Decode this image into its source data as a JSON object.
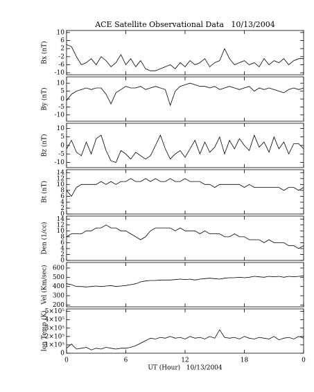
{
  "title": "ACE Satellite Observational Data   10/13/2004",
  "chart_data": [
    {
      "type": "line",
      "ylabel": "Bx (nT)",
      "color": "#000000",
      "xlim": [
        0,
        24
      ],
      "xticks": [
        0,
        6,
        12,
        18,
        {
          "value": 24,
          "label": "0"
        }
      ],
      "ylim": [
        -11,
        11
      ],
      "yticks": [
        10,
        6,
        2,
        -2,
        -6,
        -10
      ],
      "x": [
        0,
        0.5,
        1,
        1.5,
        2,
        2.5,
        3,
        3.5,
        4,
        4.5,
        5,
        5.5,
        6,
        6.5,
        7,
        7.5,
        8,
        8.5,
        9,
        9.5,
        10,
        10.5,
        11,
        11.5,
        12,
        12.5,
        13,
        13.5,
        14,
        14.5,
        15,
        15.5,
        16,
        16.5,
        17,
        17.5,
        18,
        18.5,
        19,
        19.5,
        20,
        20.5,
        21,
        21.5,
        22,
        22.5,
        23,
        23.5,
        24
      ],
      "values": [
        4,
        3,
        -2,
        -6,
        -5,
        -3,
        -6,
        -2,
        -4,
        -7,
        -5,
        -1,
        -6,
        -3,
        -7,
        -4,
        -8,
        -9,
        -9,
        -8,
        -7,
        -6,
        -8,
        -5,
        -7,
        -4,
        -6,
        -5,
        -3,
        -7,
        -5,
        -4,
        2,
        -3,
        -6,
        -5,
        -4,
        -6,
        -5,
        -7,
        -3,
        -6,
        -4,
        -5,
        -3,
        -6,
        -4,
        -3,
        -3
      ]
    },
    {
      "type": "line",
      "ylabel": "By (nT)",
      "color": "#000000",
      "xlim": [
        0,
        24
      ],
      "xticks": [
        0,
        6,
        12,
        18,
        {
          "value": 24,
          "label": "0"
        }
      ],
      "ylim": [
        -14,
        14
      ],
      "yticks": [
        10,
        5,
        0,
        -5,
        -10
      ],
      "x": [
        0,
        0.5,
        1,
        1.5,
        2,
        2.5,
        3,
        3.5,
        4,
        4.5,
        5,
        5.5,
        6,
        6.5,
        7,
        7.5,
        8,
        8.5,
        9,
        9.5,
        10,
        10.5,
        11,
        11.5,
        12,
        12.5,
        13,
        13.5,
        14,
        14.5,
        15,
        15.5,
        16,
        16.5,
        17,
        17.5,
        18,
        18.5,
        19,
        19.5,
        20,
        20.5,
        21,
        21.5,
        22,
        22.5,
        23,
        23.5,
        24
      ],
      "values": [
        -1,
        3,
        5,
        6,
        7,
        6,
        7,
        7,
        3,
        -3,
        4,
        6,
        8,
        7,
        7,
        8,
        6,
        7,
        8,
        7,
        6,
        -4,
        5,
        8,
        9,
        10,
        9,
        8,
        8,
        7,
        8,
        6,
        7,
        8,
        7,
        6,
        7,
        8,
        5,
        7,
        6,
        7,
        6,
        5,
        4,
        6,
        7,
        6,
        7
      ]
    },
    {
      "type": "line",
      "ylabel": "Bz (nT)",
      "color": "#000000",
      "xlim": [
        0,
        24
      ],
      "xticks": [
        0,
        6,
        12,
        18,
        {
          "value": 24,
          "label": "0"
        }
      ],
      "ylim": [
        -13,
        13
      ],
      "yticks": [
        10,
        5,
        0,
        -5,
        -10
      ],
      "x": [
        0,
        0.5,
        1,
        1.5,
        2,
        2.5,
        3,
        3.5,
        4,
        4.5,
        5,
        5.5,
        6,
        6.5,
        7,
        7.5,
        8,
        8.5,
        9,
        9.5,
        10,
        10.5,
        11,
        11.5,
        12,
        12.5,
        13,
        13.5,
        14,
        14.5,
        15,
        15.5,
        16,
        16.5,
        17,
        17.5,
        18,
        18.5,
        19,
        19.5,
        20,
        20.5,
        21,
        21.5,
        22,
        22.5,
        23,
        23.5,
        24
      ],
      "values": [
        -2,
        3,
        -4,
        -6,
        2,
        -5,
        4,
        6,
        -3,
        -9,
        -10,
        -3,
        -5,
        -8,
        -4,
        -6,
        -8,
        -6,
        0,
        6,
        -2,
        -8,
        -5,
        -3,
        -7,
        -2,
        3,
        -5,
        2,
        -4,
        -1,
        5,
        -5,
        3,
        -2,
        4,
        0,
        -3,
        6,
        -1,
        2,
        -4,
        5,
        -2,
        2,
        -5,
        1,
        1,
        -2
      ]
    },
    {
      "type": "line",
      "ylabel": "Bt (nT)",
      "color": "#000000",
      "xlim": [
        0,
        24
      ],
      "xticks": [
        0,
        6,
        12,
        18,
        {
          "value": 24,
          "label": "0"
        }
      ],
      "ylim": [
        0,
        15
      ],
      "yticks": [
        14,
        12,
        10,
        8,
        6,
        4,
        2,
        0
      ],
      "x": [
        0,
        0.5,
        1,
        1.5,
        2,
        2.5,
        3,
        3.5,
        4,
        4.5,
        5,
        5.5,
        6,
        6.5,
        7,
        7.5,
        8,
        8.5,
        9,
        9.5,
        10,
        10.5,
        11,
        11.5,
        12,
        12.5,
        13,
        13.5,
        14,
        14.5,
        15,
        15.5,
        16,
        16.5,
        17,
        17.5,
        18,
        18.5,
        19,
        19.5,
        20,
        20.5,
        21,
        21.5,
        22,
        22.5,
        23,
        23.5,
        24
      ],
      "values": [
        8,
        6,
        9,
        10,
        10,
        10,
        10,
        11,
        10,
        11,
        10,
        11,
        11,
        12,
        11,
        11,
        12,
        11,
        12,
        11,
        11,
        12,
        11,
        11,
        12,
        11,
        11,
        11,
        10,
        10,
        9,
        10,
        10,
        10,
        10,
        10,
        9,
        10,
        9,
        9,
        9,
        9,
        9,
        9,
        8,
        9,
        9,
        8,
        9
      ]
    },
    {
      "type": "line",
      "ylabel": "Den (1/cc)",
      "color": "#000000",
      "xlim": [
        0,
        24
      ],
      "xticks": [
        0,
        6,
        12,
        18,
        {
          "value": 24,
          "label": "0"
        }
      ],
      "ylim": [
        0,
        15
      ],
      "yticks": [
        14,
        12,
        10,
        8,
        6,
        4,
        2,
        0
      ],
      "x": [
        0,
        0.5,
        1,
        1.5,
        2,
        2.5,
        3,
        3.5,
        4,
        4.5,
        5,
        5.5,
        6,
        6.5,
        7,
        7.5,
        8,
        8.5,
        9,
        9.5,
        10,
        10.5,
        11,
        11.5,
        12,
        12.5,
        13,
        13.5,
        14,
        14.5,
        15,
        15.5,
        16,
        16.5,
        17,
        17.5,
        18,
        18.5,
        19,
        19.5,
        20,
        20.5,
        21,
        21.5,
        22,
        22.5,
        23,
        23.5,
        24
      ],
      "values": [
        8,
        9,
        9,
        9,
        10,
        10,
        11,
        11,
        12,
        11,
        11,
        10,
        10,
        9,
        8,
        7,
        8,
        10,
        11,
        11,
        11,
        11,
        10,
        11,
        10,
        10,
        10,
        9,
        10,
        9,
        9,
        9,
        8,
        8,
        9,
        8,
        8,
        7,
        7,
        7,
        6,
        7,
        6,
        6,
        6,
        5,
        5,
        4,
        5
      ]
    },
    {
      "type": "line",
      "ylabel": "Vel (Km/sec)",
      "color": "#000000",
      "xlim": [
        0,
        24
      ],
      "xticks": [
        0,
        6,
        12,
        18,
        {
          "value": 24,
          "label": "0"
        }
      ],
      "ylim": [
        180,
        660
      ],
      "yticks": [
        600,
        500,
        400,
        300,
        200
      ],
      "x": [
        0,
        0.5,
        1,
        1.5,
        2,
        2.5,
        3,
        3.5,
        4,
        4.5,
        5,
        5.5,
        6,
        6.5,
        7,
        7.5,
        8,
        8.5,
        9,
        9.5,
        10,
        10.5,
        11,
        11.5,
        12,
        12.5,
        13,
        13.5,
        14,
        14.5,
        15,
        15.5,
        16,
        16.5,
        17,
        17.5,
        18,
        18.5,
        19,
        19.5,
        20,
        20.5,
        21,
        21.5,
        22,
        22.5,
        23,
        23.5,
        24
      ],
      "values": [
        430,
        420,
        400,
        400,
        395,
        400,
        405,
        400,
        405,
        410,
        400,
        405,
        410,
        420,
        430,
        450,
        460,
        465,
        465,
        470,
        470,
        470,
        475,
        480,
        475,
        480,
        470,
        480,
        485,
        490,
        485,
        480,
        490,
        495,
        495,
        500,
        495,
        500,
        510,
        505,
        500,
        510,
        505,
        510,
        500,
        510,
        505,
        510,
        515
      ]
    },
    {
      "type": "line",
      "ylabel": "Ion Temp (K)",
      "xlabel": "UT (Hour)   10/13/2004",
      "color": "#000000",
      "xlim": [
        0,
        24
      ],
      "xticks": [
        0,
        6,
        12,
        18,
        {
          "value": 24,
          "label": "0"
        }
      ],
      "ylim": [
        0,
        530000
      ],
      "yticks": [
        {
          "value": 500000,
          "label": "5×10⁵"
        },
        {
          "value": 400000,
          "label": "4×10⁵"
        },
        {
          "value": 300000,
          "label": "3×10⁵"
        },
        {
          "value": 200000,
          "label": "2×10⁵"
        },
        {
          "value": 100000,
          "label": "1×10⁵"
        },
        0
      ],
      "x": [
        0,
        0.5,
        1,
        1.5,
        2,
        2.5,
        3,
        3.5,
        4,
        4.5,
        5,
        5.5,
        6,
        6.5,
        7,
        7.5,
        8,
        8.5,
        9,
        9.5,
        10,
        10.5,
        11,
        11.5,
        12,
        12.5,
        13,
        13.5,
        14,
        14.5,
        15,
        15.5,
        16,
        16.5,
        17,
        17.5,
        18,
        18.5,
        19,
        19.5,
        20,
        20.5,
        21,
        21.5,
        22,
        22.5,
        23,
        23.5,
        24
      ],
      "values": [
        60000,
        110000,
        50000,
        60000,
        70000,
        40000,
        60000,
        50000,
        70000,
        60000,
        50000,
        60000,
        60000,
        70000,
        90000,
        120000,
        150000,
        180000,
        170000,
        190000,
        180000,
        200000,
        180000,
        190000,
        170000,
        200000,
        180000,
        190000,
        170000,
        200000,
        180000,
        280000,
        190000,
        180000,
        190000,
        170000,
        200000,
        180000,
        170000,
        190000,
        180000,
        170000,
        200000,
        160000,
        180000,
        190000,
        170000,
        200000,
        180000
      ]
    }
  ]
}
